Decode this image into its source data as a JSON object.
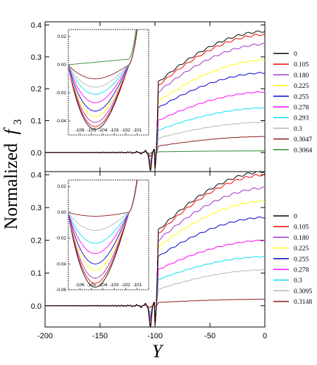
{
  "chart_data": [
    {
      "type": "line",
      "panel": "top",
      "xlim": [
        -200,
        0
      ],
      "ylim": [
        -0.06,
        0.41
      ],
      "yticks": [
        "0.0",
        "0.1",
        "0.2",
        "0.3",
        "0.4"
      ],
      "ytick_values": [
        0.0,
        0.1,
        0.2,
        0.3,
        0.4
      ],
      "legend_position": "right",
      "series": [
        {
          "name": "0",
          "color": "#000000",
          "plateau": 0.38,
          "dip": -0.052,
          "post": 0.22
        },
        {
          "name": "0.105",
          "color": "#ff0000",
          "plateau": 0.37,
          "dip": -0.05,
          "post": 0.21
        },
        {
          "name": "0.180",
          "color": "#9b30c8",
          "plateau": 0.34,
          "dip": -0.046,
          "post": 0.19
        },
        {
          "name": "0.225",
          "color": "#ffff00",
          "plateau": 0.29,
          "dip": -0.042,
          "post": 0.16
        },
        {
          "name": "0.255",
          "color": "#0000d0",
          "plateau": 0.25,
          "dip": -0.038,
          "post": 0.14
        },
        {
          "name": "0.278",
          "color": "#ff00ff",
          "plateau": 0.19,
          "dip": -0.034,
          "post": 0.1
        },
        {
          "name": "0.293",
          "color": "#00e0f0",
          "plateau": 0.14,
          "dip": -0.028,
          "post": 0.07
        },
        {
          "name": "0.3",
          "color": "#b4b4b4",
          "plateau": 0.095,
          "dip": -0.022,
          "post": 0.045
        },
        {
          "name": "0.3047",
          "color": "#8b1a1a",
          "plateau": 0.05,
          "dip": -0.01,
          "post": 0.02
        },
        {
          "name": "0.3064",
          "color": "#2e8b2e",
          "plateau": 0.005,
          "dip": -0.001,
          "post": 0.002
        }
      ],
      "inset": {
        "xlim": [
          -107,
          -100
        ],
        "ylim": [
          -0.05,
          0.025
        ],
        "xticks": [
          "-106",
          "-105",
          "-104",
          "-103",
          "-102",
          "-101"
        ],
        "xtick_values": [
          -106,
          -105,
          -104,
          -103,
          -102,
          -101
        ],
        "yticks": [
          "0.02",
          "0.00",
          "-0.02",
          "-0.04"
        ],
        "ytick_values": [
          0.02,
          0.0,
          -0.02,
          -0.04
        ],
        "minima": [
          -0.046,
          -0.044,
          -0.041,
          -0.037,
          -0.033,
          -0.027,
          -0.021,
          -0.016,
          -0.01,
          0.004
        ]
      }
    },
    {
      "type": "line",
      "panel": "bottom",
      "xlim": [
        -200,
        0
      ],
      "ylim": [
        -0.065,
        0.41
      ],
      "yticks": [
        "0.0",
        "0.1",
        "0.2",
        "0.3",
        "0.4"
      ],
      "ytick_values": [
        0.0,
        0.1,
        0.2,
        0.3,
        0.4
      ],
      "xticks": [
        "-200",
        "-150",
        "-100",
        "-50",
        "0"
      ],
      "xtick_values": [
        -200,
        -150,
        -100,
        -50,
        0
      ],
      "legend_position": "right",
      "series": [
        {
          "name": "0",
          "color": "#000000",
          "plateau": 0.41,
          "dip": -0.06,
          "post": 0.23
        },
        {
          "name": "0.105",
          "color": "#ff0000",
          "plateau": 0.4,
          "dip": -0.058,
          "post": 0.22
        },
        {
          "name": "0.180",
          "color": "#9b30c8",
          "plateau": 0.36,
          "dip": -0.054,
          "post": 0.2
        },
        {
          "name": "0.225",
          "color": "#ffff00",
          "plateau": 0.32,
          "dip": -0.048,
          "post": 0.18
        },
        {
          "name": "0.255",
          "color": "#0000d0",
          "plateau": 0.27,
          "dip": -0.042,
          "post": 0.15
        },
        {
          "name": "0.278",
          "color": "#ff00ff",
          "plateau": 0.2,
          "dip": -0.034,
          "post": 0.11
        },
        {
          "name": "0.3",
          "color": "#00e0f0",
          "plateau": 0.15,
          "dip": -0.026,
          "post": 0.08
        },
        {
          "name": "0.3095",
          "color": "#b4b4b4",
          "plateau": 0.11,
          "dip": -0.018,
          "post": 0.05
        },
        {
          "name": "0.3148",
          "color": "#8b1a1a",
          "plateau": 0.02,
          "dip": -0.004,
          "post": 0.01
        }
      ],
      "inset": {
        "xlim": [
          -107,
          -100
        ],
        "ylim": [
          -0.06,
          0.025
        ],
        "xticks": [
          "-106",
          "-105",
          "-104",
          "-103",
          "-102",
          "-101"
        ],
        "xtick_values": [
          -106,
          -105,
          -104,
          -103,
          -102,
          -101
        ],
        "yticks": [
          "0.02",
          "0.00",
          "-0.02",
          "-0.04",
          "-0.06"
        ],
        "ytick_values": [
          0.02,
          0.0,
          -0.02,
          -0.04,
          -0.06
        ],
        "minima": [
          -0.058,
          -0.055,
          -0.051,
          -0.045,
          -0.04,
          -0.032,
          -0.024,
          -0.014,
          -0.003
        ]
      }
    }
  ],
  "labels": {
    "ylabel": "Normalized",
    "ylabel_symbol": "f",
    "ylabel_subscript": "3",
    "xlabel": "Y"
  }
}
